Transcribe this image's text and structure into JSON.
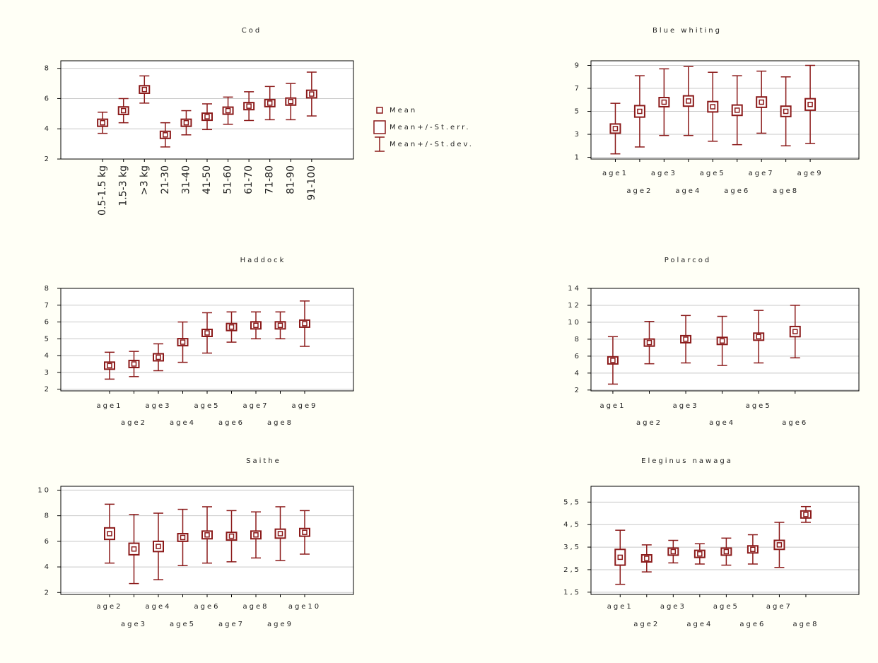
{
  "chart_data": [
    {
      "type": "meanbox",
      "title": "Cod",
      "color": "#8b1a1a",
      "rotate_labels": true,
      "categories": [
        "0.5-1.5 kg",
        "1.5-3 kg",
        ">3 kg",
        "21-30",
        "31-40",
        "41-50",
        "51-60",
        "61-70",
        "71-80",
        "81-90",
        "91-100"
      ],
      "values": [
        4.4,
        5.2,
        6.6,
        3.6,
        4.4,
        4.8,
        5.2,
        5.5,
        5.7,
        5.8,
        6.3
      ],
      "se": [
        0.2,
        0.25,
        0.25,
        0.15,
        0.2,
        0.2,
        0.2,
        0.2,
        0.2,
        0.2,
        0.25
      ],
      "sd": [
        0.7,
        0.8,
        0.9,
        0.8,
        0.8,
        0.85,
        0.9,
        0.95,
        1.1,
        1.2,
        1.45
      ],
      "ylim": [
        2,
        8.5
      ],
      "yticks": [
        2,
        4,
        6,
        8
      ],
      "legend": [
        "Mean",
        "Mean+/-St.err.",
        "Mean+/-St.dev."
      ]
    },
    {
      "type": "meanbox",
      "title": "Blue whiting",
      "color": "#8b1a1a",
      "categories": [
        "age1",
        "age2",
        "age3",
        "age4",
        "age5",
        "age6",
        "age7",
        "age8",
        "age9"
      ],
      "values": [
        3.5,
        5.0,
        5.8,
        5.9,
        5.4,
        5.1,
        5.8,
        5.0,
        5.6
      ],
      "se": [
        0.4,
        0.5,
        0.4,
        0.45,
        0.45,
        0.45,
        0.45,
        0.45,
        0.5
      ],
      "sd": [
        2.2,
        3.1,
        2.9,
        3.0,
        3.0,
        3.0,
        2.7,
        3.0,
        3.4
      ],
      "ylim": [
        0.85,
        9.4
      ],
      "yticks": [
        1,
        3,
        5,
        7,
        9
      ]
    },
    {
      "type": "meanbox",
      "title": "Haddock",
      "color": "#8b1a1a",
      "categories": [
        "age1",
        "age2",
        "age3",
        "age4",
        "age5",
        "age6",
        "age7",
        "age8",
        "age9"
      ],
      "values": [
        3.4,
        3.5,
        3.9,
        4.8,
        5.35,
        5.7,
        5.8,
        5.8,
        5.9
      ],
      "se": [
        0.1,
        0.1,
        0.1,
        0.12,
        0.15,
        0.12,
        0.12,
        0.12,
        0.15
      ],
      "sd": [
        0.8,
        0.75,
        0.8,
        1.2,
        1.2,
        0.9,
        0.8,
        0.8,
        1.35
      ],
      "ylim": [
        1.9,
        8.0
      ],
      "yticks": [
        2,
        3,
        4,
        5,
        6,
        7,
        8
      ]
    },
    {
      "type": "meanbox",
      "title": "Polarcod",
      "color": "#8b1a1a",
      "categories": [
        "age1",
        "age2",
        "age3",
        "age4",
        "age5",
        "age6"
      ],
      "values": [
        5.5,
        7.6,
        8.0,
        7.8,
        8.3,
        8.9
      ],
      "se": [
        0.4,
        0.3,
        0.35,
        0.4,
        0.4,
        0.6
      ],
      "sd": [
        2.8,
        2.5,
        2.8,
        2.9,
        3.1,
        3.1
      ],
      "ylim": [
        1.9,
        14
      ],
      "yticks": [
        2,
        4,
        6,
        8,
        10,
        12,
        14
      ]
    },
    {
      "type": "meanbox",
      "title": "Saithe",
      "color": "#8b1a1a",
      "categories": [
        "age2",
        "age3",
        "age4",
        "age5",
        "age6",
        "age7",
        "age8",
        "age9",
        "age10"
      ],
      "values": [
        6.6,
        5.4,
        5.6,
        6.3,
        6.5,
        6.4,
        6.5,
        6.6,
        6.7
      ],
      "se": [
        0.45,
        0.45,
        0.4,
        0.3,
        0.3,
        0.3,
        0.3,
        0.35,
        0.3
      ],
      "sd": [
        2.3,
        2.7,
        2.6,
        2.2,
        2.2,
        2.0,
        1.8,
        2.1,
        1.7
      ],
      "ylim": [
        1.85,
        10.3
      ],
      "yticks": [
        2,
        4,
        6,
        8,
        10
      ]
    },
    {
      "type": "meanbox",
      "title": "Eleginus nawaga",
      "color": "#8b1a1a",
      "categories": [
        "age1",
        "age2",
        "age3",
        "age4",
        "age5",
        "age6",
        "age7",
        "age8"
      ],
      "values": [
        3.05,
        3.0,
        3.3,
        3.2,
        3.3,
        3.4,
        3.6,
        4.95
      ],
      "se": [
        0.35,
        0.15,
        0.15,
        0.12,
        0.15,
        0.15,
        0.2,
        0.13
      ],
      "sd": [
        1.2,
        0.6,
        0.5,
        0.45,
        0.6,
        0.65,
        1.0,
        0.35
      ],
      "ylim": [
        1.4,
        6.2
      ],
      "yticks": [
        {
          "value": 1.5,
          "label": "1,5"
        },
        {
          "value": 2.5,
          "label": "2,5"
        },
        {
          "value": 3.5,
          "label": "3,5"
        },
        {
          "value": 4.5,
          "label": "4,5"
        },
        {
          "value": 5.5,
          "label": "5,5"
        }
      ]
    }
  ]
}
